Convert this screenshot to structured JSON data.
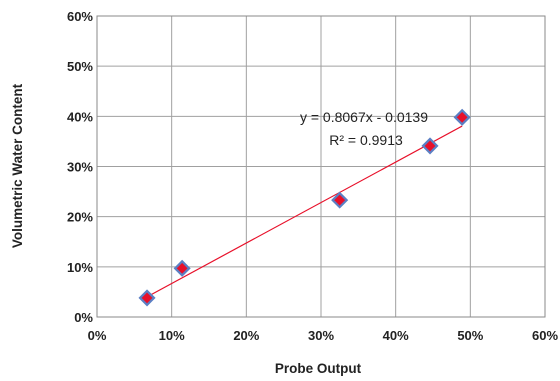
{
  "chart_data": {
    "type": "scatter",
    "xlabel": "Probe Output",
    "ylabel": "Volumetric Water Content",
    "xlim": [
      0,
      0.6
    ],
    "ylim": [
      0,
      0.6
    ],
    "x_ticks": [
      "0%",
      "10%",
      "20%",
      "30%",
      "40%",
      "50%",
      "60%"
    ],
    "y_ticks": [
      "0%",
      "10%",
      "20%",
      "30%",
      "40%",
      "50%",
      "60%"
    ],
    "grid": true,
    "legend": "none",
    "series": [
      {
        "points": [
          {
            "x": 0.067,
            "y": 0.038
          },
          {
            "x": 0.114,
            "y": 0.097
          },
          {
            "x": 0.325,
            "y": 0.233
          },
          {
            "x": 0.446,
            "y": 0.341
          },
          {
            "x": 0.489,
            "y": 0.398
          }
        ],
        "marker": "diamond",
        "marker_fill": "#e8102a",
        "marker_edge": "#5b7fc4"
      }
    ],
    "trendline": {
      "slope": 0.8067,
      "intercept": -0.0139,
      "x_range": [
        0.067,
        0.489
      ],
      "color": "#e8102a",
      "equation_label": "y = 0.8067x - 0.0139",
      "r2_label": "R² = 0.9913"
    }
  }
}
